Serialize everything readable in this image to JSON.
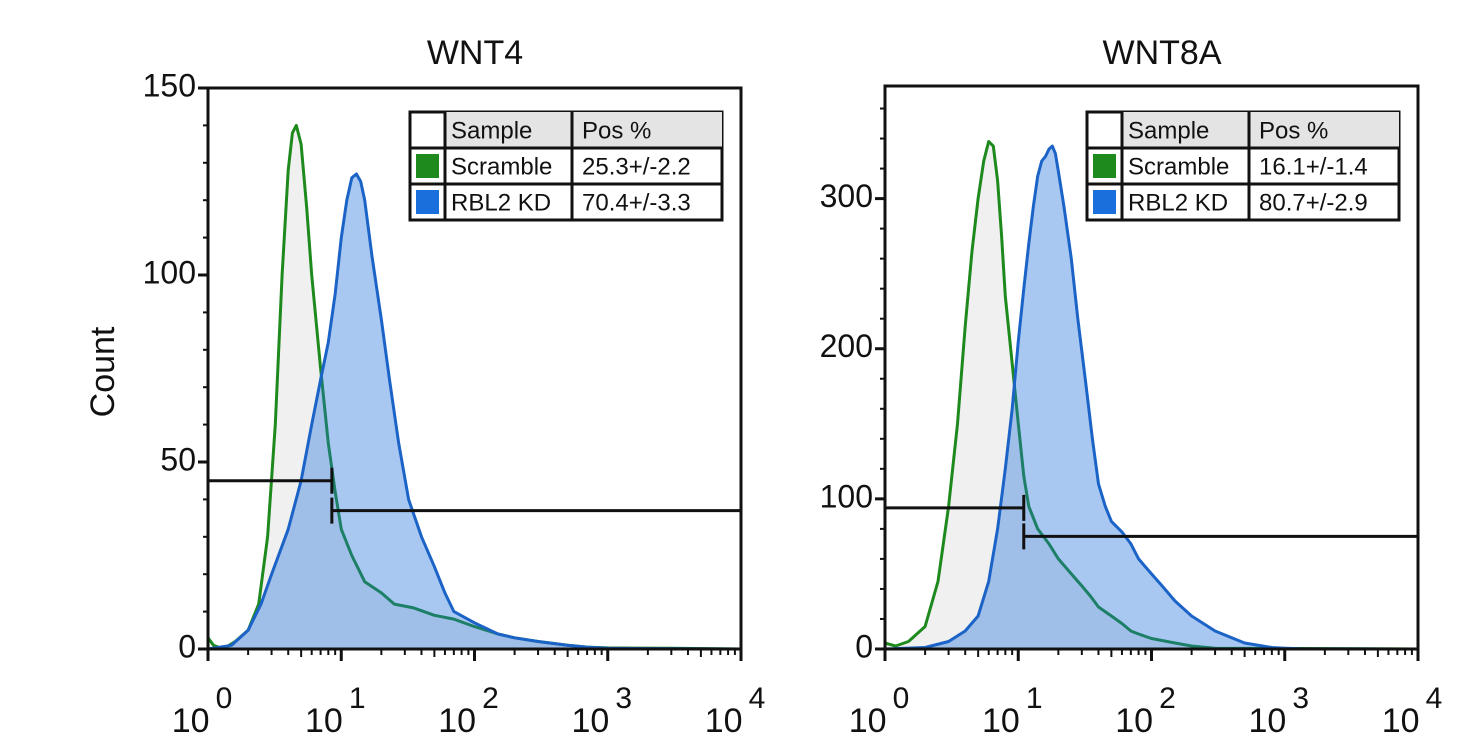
{
  "figure": {
    "y_axis_label": "Count"
  },
  "colors": {
    "scramble_line": "#1e8a1e",
    "scramble_fill": "#f0f0f0",
    "kd_line": "#1b63c6",
    "kd_fill": "#1b6fdc",
    "swatch_scramble": "#1e8a1e",
    "swatch_kd": "#1b6fdc",
    "header_bg": "#e4e4e4"
  },
  "chart_data": [
    {
      "type": "area",
      "title": "WNT4",
      "xlabel": "",
      "ylabel": "Count",
      "x_scale": "log",
      "xlim": [
        1,
        10000
      ],
      "ylim": [
        0,
        150
      ],
      "y_ticks": [
        0,
        50,
        100,
        150
      ],
      "x_ticks": [
        {
          "value": 1,
          "base": "10",
          "exp": "0"
        },
        {
          "value": 10,
          "base": "10",
          "exp": "1"
        },
        {
          "value": 100,
          "base": "10",
          "exp": "2"
        },
        {
          "value": 1000,
          "base": "10",
          "exp": "3"
        },
        {
          "value": 10000,
          "base": "10",
          "exp": "4"
        }
      ],
      "legend": {
        "placement": "top-right",
        "headers": [
          "Sample",
          "Pos %"
        ],
        "rows": [
          {
            "sample": "Scramble",
            "pos": "25.3+/-2.2",
            "series": "scramble"
          },
          {
            "sample": "RBL2 KD",
            "pos": "70.4+/-3.3",
            "series": "kd"
          }
        ]
      },
      "gates": [
        {
          "series": "scramble",
          "x_from": 1,
          "x_to": 8.5,
          "level": 45
        },
        {
          "series": "kd",
          "x_from": 8.5,
          "x_to": 10000,
          "level": 37
        }
      ],
      "series": [
        {
          "name": "Scramble",
          "key": "scramble",
          "points": [
            [
              1,
              3
            ],
            [
              1.1,
              1
            ],
            [
              1.3,
              0
            ],
            [
              1.6,
              2
            ],
            [
              2,
              5
            ],
            [
              2.4,
              12
            ],
            [
              2.8,
              30
            ],
            [
              3.2,
              60
            ],
            [
              3.6,
              100
            ],
            [
              4,
              128
            ],
            [
              4.3,
              138
            ],
            [
              4.6,
              140
            ],
            [
              5,
              135
            ],
            [
              5.5,
              118
            ],
            [
              6,
              100
            ],
            [
              7,
              75
            ],
            [
              8,
              55
            ],
            [
              9,
              42
            ],
            [
              10,
              32
            ],
            [
              12,
              25
            ],
            [
              15,
              18
            ],
            [
              20,
              15
            ],
            [
              25,
              12
            ],
            [
              35,
              11
            ],
            [
              50,
              9
            ],
            [
              70,
              8
            ],
            [
              100,
              6
            ],
            [
              150,
              4
            ],
            [
              200,
              3
            ],
            [
              300,
              2
            ],
            [
              500,
              1
            ],
            [
              700,
              0.5
            ],
            [
              1000,
              0.3
            ],
            [
              3000,
              0.2
            ],
            [
              10000,
              0
            ]
          ]
        },
        {
          "name": "RBL2 KD",
          "key": "kd",
          "points": [
            [
              1,
              0
            ],
            [
              1.5,
              1
            ],
            [
              2,
              5
            ],
            [
              2.5,
              12
            ],
            [
              3,
              20
            ],
            [
              4,
              32
            ],
            [
              5,
              45
            ],
            [
              6,
              60
            ],
            [
              7,
              72
            ],
            [
              8,
              82
            ],
            [
              9,
              95
            ],
            [
              10,
              110
            ],
            [
              11,
              120
            ],
            [
              12,
              126
            ],
            [
              13,
              127
            ],
            [
              14,
              125
            ],
            [
              15,
              120
            ],
            [
              17,
              105
            ],
            [
              20,
              88
            ],
            [
              23,
              72
            ],
            [
              27,
              55
            ],
            [
              32,
              40
            ],
            [
              40,
              30
            ],
            [
              50,
              22
            ],
            [
              60,
              15
            ],
            [
              70,
              10
            ],
            [
              100,
              7
            ],
            [
              150,
              4
            ],
            [
              200,
              3
            ],
            [
              300,
              2
            ],
            [
              500,
              1
            ],
            [
              700,
              0.5
            ],
            [
              1000,
              0.2
            ],
            [
              10000,
              0
            ]
          ]
        }
      ]
    },
    {
      "type": "area",
      "title": "WNT8A",
      "xlabel": "",
      "ylabel": "",
      "x_scale": "log",
      "xlim": [
        1,
        10000
      ],
      "ylim": [
        0,
        375
      ],
      "y_ticks": [
        0,
        100,
        200,
        300
      ],
      "x_ticks": [
        {
          "value": 1,
          "base": "10",
          "exp": "0"
        },
        {
          "value": 10,
          "base": "10",
          "exp": "1"
        },
        {
          "value": 100,
          "base": "10",
          "exp": "2"
        },
        {
          "value": 1000,
          "base": "10",
          "exp": "3"
        },
        {
          "value": 10000,
          "base": "10",
          "exp": "4"
        }
      ],
      "legend": {
        "placement": "top-right",
        "headers": [
          "Sample",
          "Pos %"
        ],
        "rows": [
          {
            "sample": "Scramble",
            "pos": "16.1+/-1.4",
            "series": "scramble"
          },
          {
            "sample": "RBL2 KD",
            "pos": "80.7+/-2.9",
            "series": "kd"
          }
        ]
      },
      "gates": [
        {
          "series": "scramble",
          "x_from": 1,
          "x_to": 11,
          "level": 94
        },
        {
          "series": "kd",
          "x_from": 11,
          "x_to": 10000,
          "level": 75
        }
      ],
      "series": [
        {
          "name": "Scramble",
          "key": "scramble",
          "points": [
            [
              1,
              4
            ],
            [
              1.2,
              2
            ],
            [
              1.5,
              5
            ],
            [
              2,
              15
            ],
            [
              2.5,
              45
            ],
            [
              3,
              95
            ],
            [
              3.5,
              150
            ],
            [
              4,
              215
            ],
            [
              4.5,
              265
            ],
            [
              5,
              300
            ],
            [
              5.5,
              325
            ],
            [
              6,
              338
            ],
            [
              6.5,
              335
            ],
            [
              7,
              312
            ],
            [
              7.5,
              275
            ],
            [
              8,
              235
            ],
            [
              9,
              190
            ],
            [
              10,
              150
            ],
            [
              11,
              115
            ],
            [
              12,
              95
            ],
            [
              14,
              80
            ],
            [
              17,
              70
            ],
            [
              20,
              60
            ],
            [
              25,
              50
            ],
            [
              30,
              42
            ],
            [
              35,
              35
            ],
            [
              40,
              28
            ],
            [
              50,
              22
            ],
            [
              60,
              17
            ],
            [
              70,
              12
            ],
            [
              80,
              10
            ],
            [
              100,
              7
            ],
            [
              150,
              4
            ],
            [
              200,
              2
            ],
            [
              300,
              0.5
            ],
            [
              10000,
              0
            ]
          ]
        },
        {
          "name": "RBL2 KD",
          "key": "kd",
          "points": [
            [
              1,
              0
            ],
            [
              2,
              1
            ],
            [
              3,
              5
            ],
            [
              4,
              12
            ],
            [
              5,
              22
            ],
            [
              6,
              45
            ],
            [
              7,
              80
            ],
            [
              8,
              120
            ],
            [
              9,
              160
            ],
            [
              10,
              205
            ],
            [
              11,
              240
            ],
            [
              12,
              270
            ],
            [
              13,
              295
            ],
            [
              14,
              315
            ],
            [
              15,
              325
            ],
            [
              16,
              328
            ],
            [
              17,
              333
            ],
            [
              18,
              335
            ],
            [
              19,
              330
            ],
            [
              20,
              318
            ],
            [
              22,
              295
            ],
            [
              25,
              260
            ],
            [
              28,
              220
            ],
            [
              32,
              178
            ],
            [
              36,
              140
            ],
            [
              40,
              110
            ],
            [
              45,
              95
            ],
            [
              50,
              85
            ],
            [
              60,
              78
            ],
            [
              70,
              70
            ],
            [
              80,
              60
            ],
            [
              100,
              50
            ],
            [
              120,
              42
            ],
            [
              150,
              32
            ],
            [
              200,
              22
            ],
            [
              300,
              12
            ],
            [
              500,
              4
            ],
            [
              800,
              1
            ],
            [
              1000,
              0.5
            ],
            [
              1300,
              0.2
            ],
            [
              10000,
              0
            ]
          ]
        }
      ]
    }
  ]
}
